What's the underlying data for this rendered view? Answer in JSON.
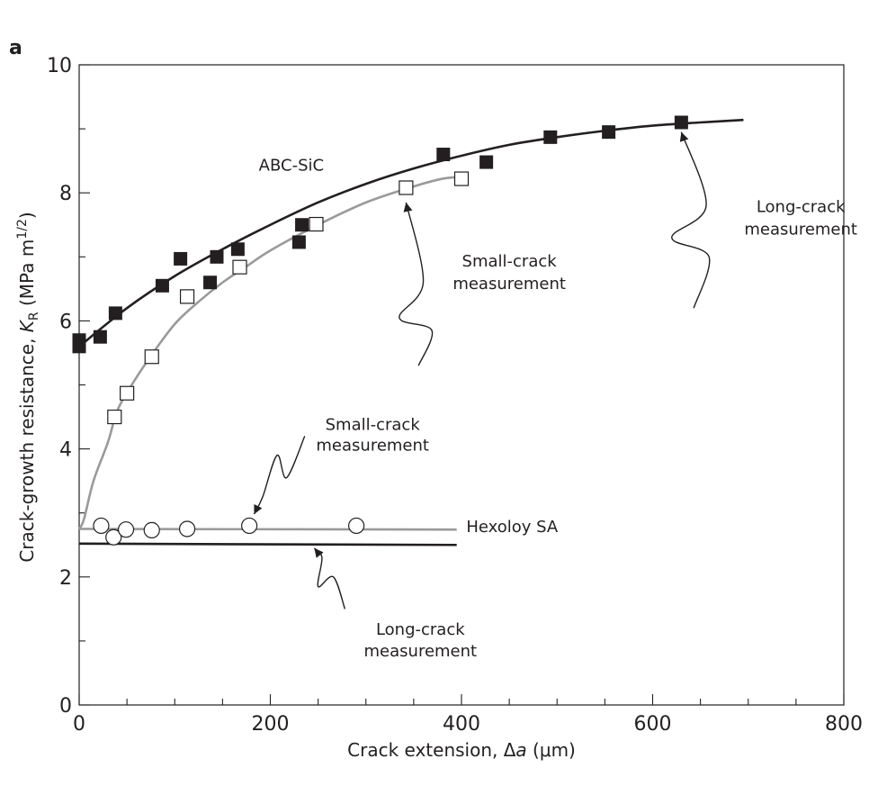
{
  "chart_data": {
    "type": "scatter",
    "panel_label": "a",
    "xlabel": {
      "pre": "Crack extension, Δ",
      "var": "a",
      "post": " (μm)"
    },
    "ylabel": {
      "pre": "Crack-growth resistance, ",
      "var": "K",
      "sub": "R",
      "unit_pre": " (MPa m",
      "sup": "1/2",
      "unit_post": ")"
    },
    "xlim": [
      0,
      800
    ],
    "ylim": [
      0,
      10
    ],
    "xticks": [
      0,
      200,
      400,
      600,
      800
    ],
    "yticks": [
      0,
      2,
      4,
      6,
      8,
      10
    ],
    "x_minor_step": 50,
    "y_minor_step": 1,
    "grid": false,
    "series": [
      {
        "marker": "filled-square",
        "color": "#231f20",
        "points": [
          [
            0,
            5.6
          ],
          [
            0,
            5.7
          ],
          [
            22,
            5.75
          ],
          [
            38,
            6.12
          ],
          [
            87,
            6.55
          ],
          [
            106,
            6.97
          ],
          [
            137,
            6.6
          ],
          [
            144,
            7.0
          ],
          [
            166,
            7.12
          ],
          [
            230,
            7.23
          ],
          [
            233,
            7.5
          ],
          [
            381,
            8.6
          ],
          [
            426,
            8.48
          ],
          [
            493,
            8.87
          ],
          [
            554,
            8.95
          ],
          [
            630,
            9.1
          ]
        ]
      },
      {
        "marker": "open-square",
        "color": "#231f20",
        "points": [
          [
            37,
            4.5
          ],
          [
            50,
            4.87
          ],
          [
            76,
            5.44
          ],
          [
            113,
            6.38
          ],
          [
            168,
            6.84
          ],
          [
            248,
            7.51
          ],
          [
            342,
            8.08
          ],
          [
            400,
            8.22
          ]
        ]
      },
      {
        "marker": "open-circle",
        "color": "#231f20",
        "points": [
          [
            23,
            2.8
          ],
          [
            36,
            2.62
          ],
          [
            49,
            2.74
          ],
          [
            76,
            2.73
          ],
          [
            113,
            2.75
          ],
          [
            178,
            2.8
          ],
          [
            290,
            2.8
          ]
        ]
      }
    ],
    "curves": [
      {
        "color": "#231f20",
        "points": [
          [
            0,
            5.6
          ],
          [
            50,
            6.2
          ],
          [
            100,
            6.7
          ],
          [
            150,
            7.12
          ],
          [
            200,
            7.5
          ],
          [
            250,
            7.85
          ],
          [
            300,
            8.14
          ],
          [
            350,
            8.38
          ],
          [
            400,
            8.58
          ],
          [
            450,
            8.75
          ],
          [
            500,
            8.87
          ],
          [
            550,
            8.97
          ],
          [
            600,
            9.05
          ],
          [
            650,
            9.1
          ],
          [
            695,
            9.14
          ]
        ]
      },
      {
        "color": "#9a9a9a",
        "points": [
          [
            0,
            2.75
          ],
          [
            5,
            2.9
          ],
          [
            15,
            3.5
          ],
          [
            30,
            4.1
          ],
          [
            40,
            4.6
          ],
          [
            55,
            5.0
          ],
          [
            75,
            5.45
          ],
          [
            100,
            5.95
          ],
          [
            125,
            6.3
          ],
          [
            150,
            6.6
          ],
          [
            175,
            6.85
          ],
          [
            200,
            7.1
          ],
          [
            250,
            7.5
          ],
          [
            300,
            7.85
          ],
          [
            350,
            8.1
          ],
          [
            380,
            8.22
          ],
          [
            400,
            8.25
          ]
        ]
      },
      {
        "color": "#9a9a9a",
        "points": [
          [
            0,
            2.75
          ],
          [
            395,
            2.74
          ]
        ]
      },
      {
        "color": "#231f20",
        "points": [
          [
            0,
            2.52
          ],
          [
            395,
            2.5
          ]
        ]
      }
    ],
    "annotations": [
      {
        "text": "ABC-SiC",
        "x": 222,
        "y": 8.35,
        "anchor": "middle"
      },
      {
        "text": "Long-crack",
        "x": 755,
        "y": 7.7,
        "anchor": "middle"
      },
      {
        "text": "measurement",
        "x": 755,
        "y": 7.35,
        "anchor": "middle"
      },
      {
        "text": "Small-crack",
        "x": 450,
        "y": 6.85,
        "anchor": "middle"
      },
      {
        "text": "measurement",
        "x": 450,
        "y": 6.5,
        "anchor": "middle"
      },
      {
        "text": "Small-crack",
        "x": 307,
        "y": 4.3,
        "anchor": "middle"
      },
      {
        "text": "measurement",
        "x": 307,
        "y": 3.97,
        "anchor": "middle"
      },
      {
        "text": "Hexoloy SA",
        "x": 405,
        "y": 2.7,
        "anchor": "start"
      },
      {
        "text": "Long-crack",
        "x": 357,
        "y": 1.1,
        "anchor": "middle"
      },
      {
        "text": "measurement",
        "x": 357,
        "y": 0.76,
        "anchor": "middle"
      }
    ],
    "arrows": [
      {
        "points": [
          [
            643,
            6.2
          ],
          [
            659,
            7.0
          ],
          [
            620,
            7.3
          ],
          [
            656,
            7.8
          ],
          [
            630,
            8.95
          ]
        ]
      },
      {
        "points": [
          [
            355,
            5.3
          ],
          [
            369,
            5.85
          ],
          [
            335,
            6.05
          ],
          [
            360,
            6.6
          ],
          [
            342,
            7.85
          ]
        ]
      },
      {
        "points": [
          [
            236,
            4.2
          ],
          [
            217,
            3.55
          ],
          [
            207,
            3.9
          ],
          [
            192,
            3.25
          ],
          [
            183,
            2.98
          ]
        ]
      },
      {
        "points": [
          [
            278,
            1.5
          ],
          [
            266,
            2.0
          ],
          [
            250,
            1.85
          ],
          [
            254,
            2.3
          ],
          [
            246,
            2.45
          ]
        ]
      }
    ]
  }
}
